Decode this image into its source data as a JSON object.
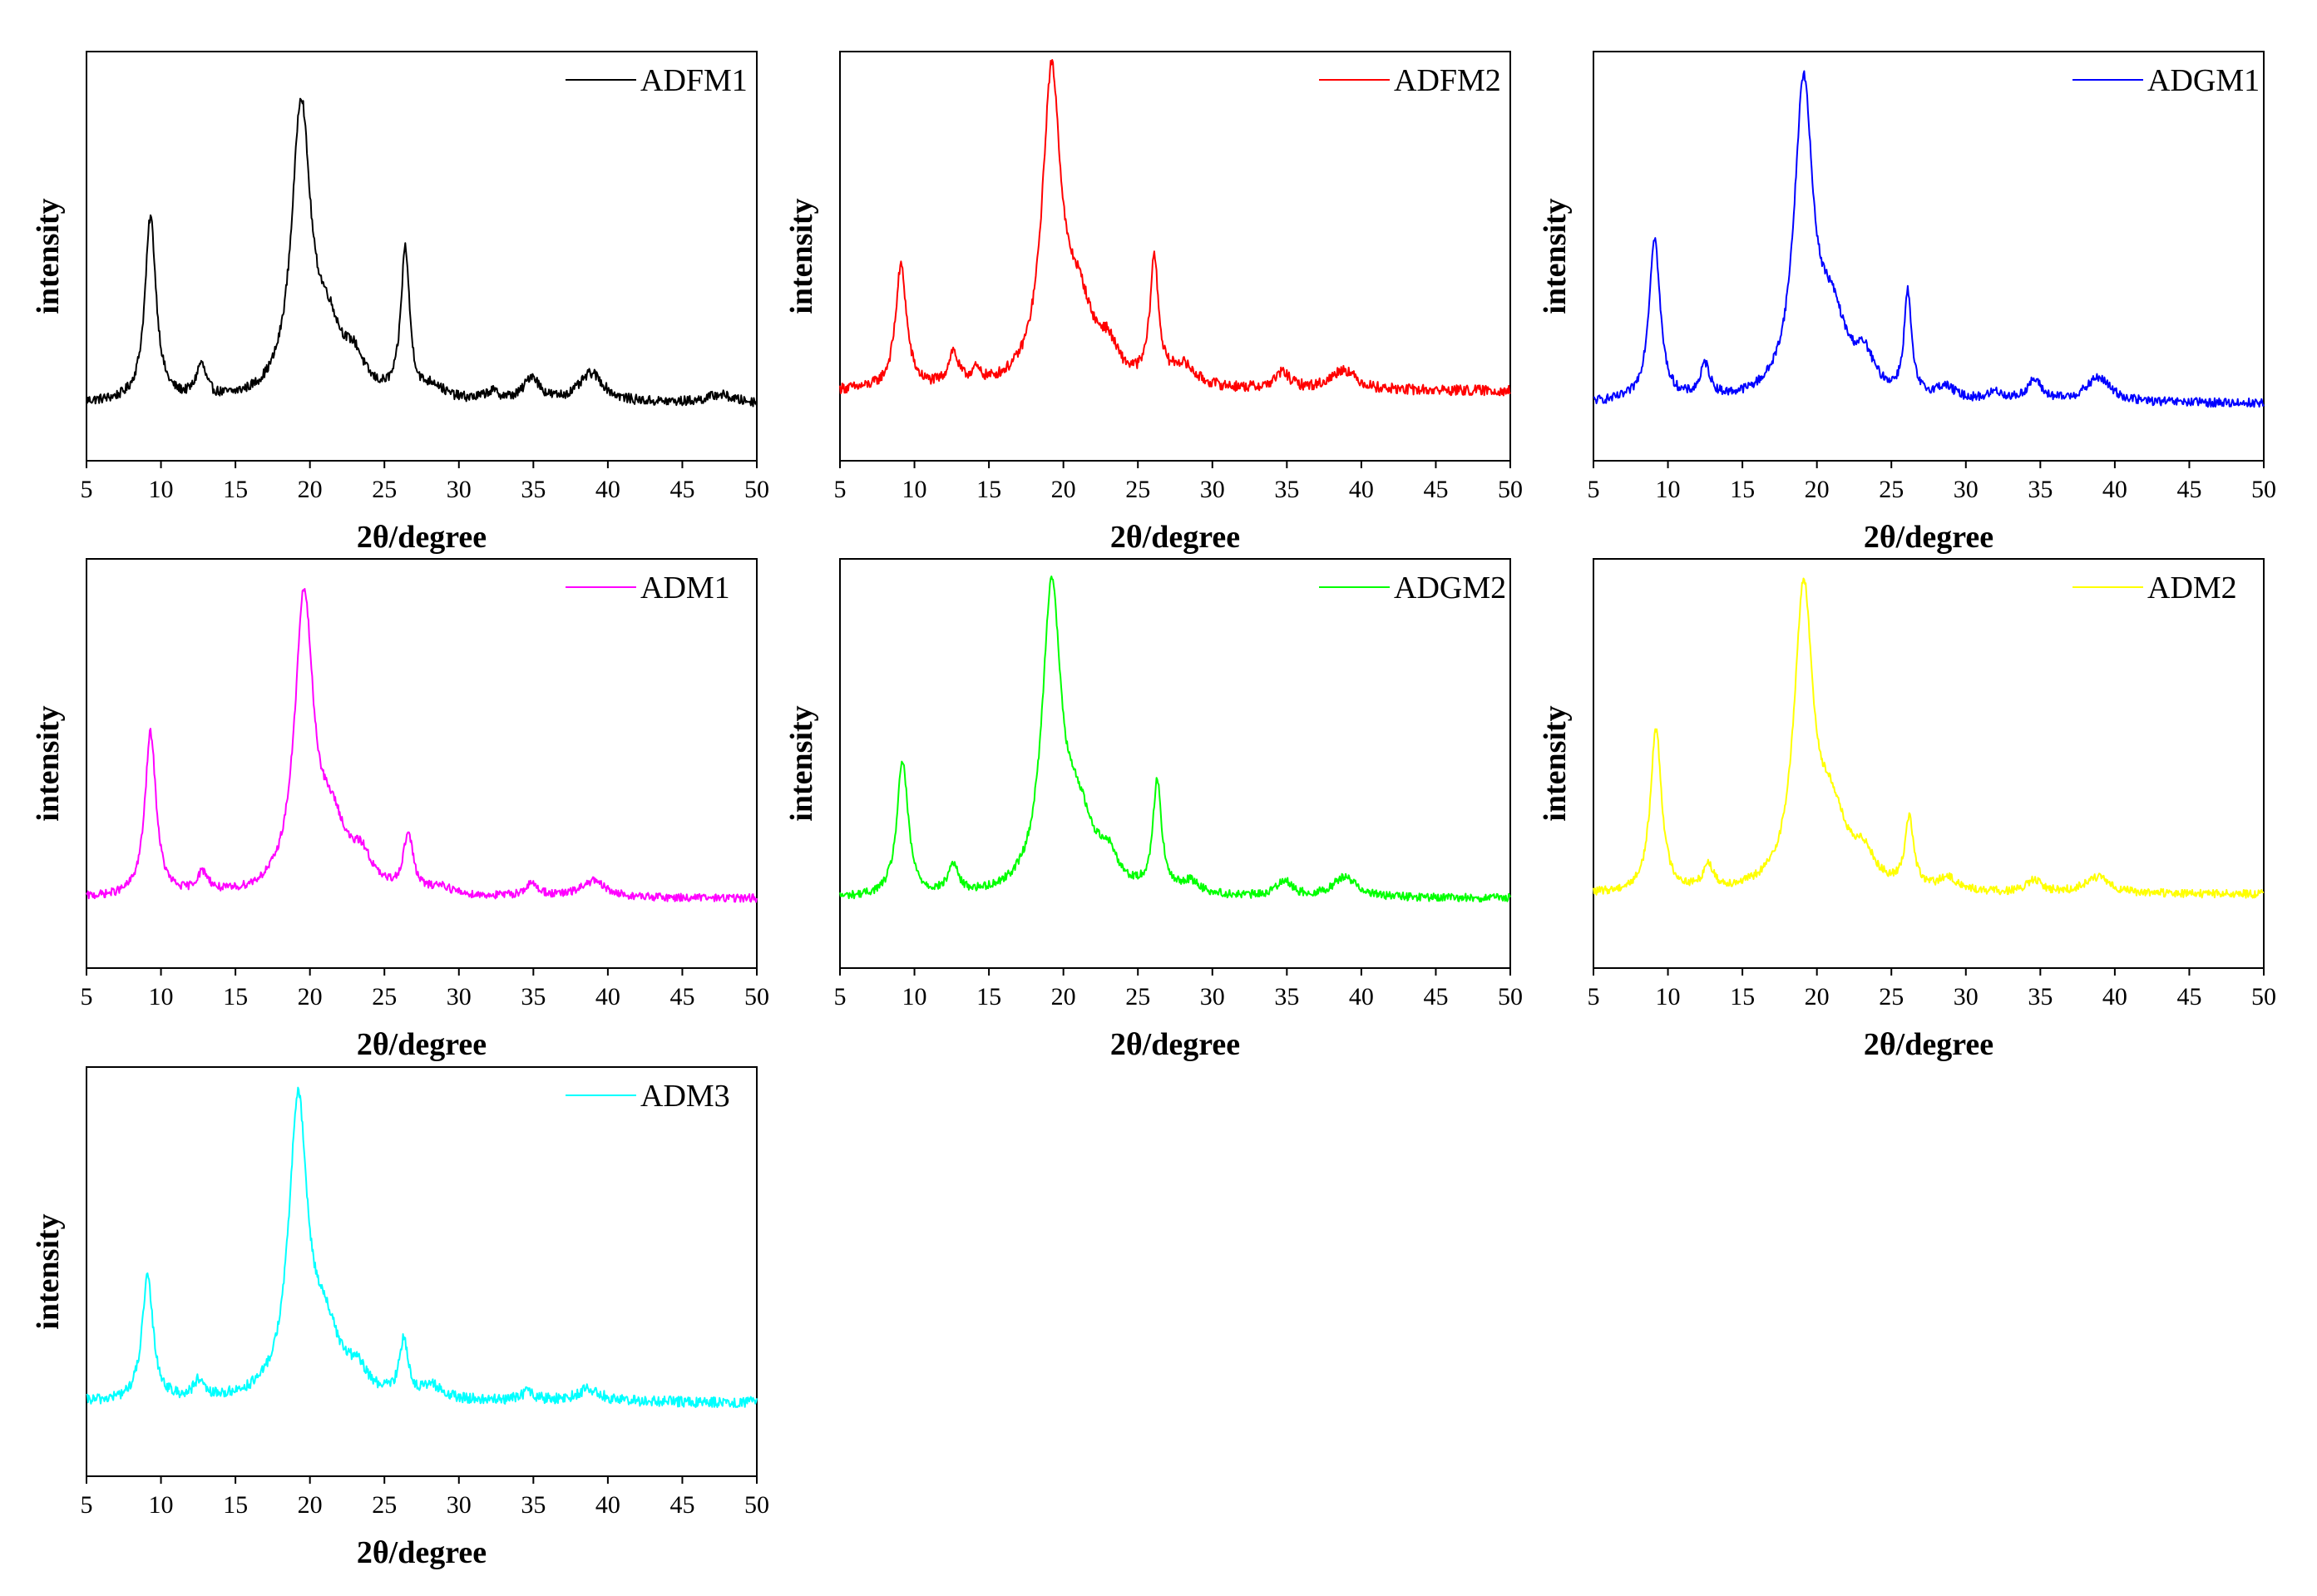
{
  "figure": {
    "background": "#ffffff",
    "axis_color": "#000000"
  },
  "chart_data": [
    {
      "type": "line",
      "series": [
        {
          "name": "ADFM1",
          "color": "#000000"
        }
      ],
      "xlabel": "2θ/degree",
      "ylabel": "intensity",
      "xlim": [
        5,
        50
      ],
      "ylim": [
        0,
        1
      ],
      "xticks": [
        5,
        10,
        15,
        20,
        25,
        30,
        35,
        40,
        45,
        50
      ],
      "y_tick_labels_shown": false,
      "grid": false,
      "legend": "top-right",
      "baseline": 0.14,
      "noise": 0.012,
      "peaks": [
        {
          "x": 9.3,
          "height": 0.45,
          "width": 0.45
        },
        {
          "x": 12.7,
          "height": 0.08,
          "width": 0.4
        },
        {
          "x": 19.4,
          "height": 0.7,
          "width": 0.75
        },
        {
          "x": 21.2,
          "height": 0.15,
          "width": 1.2
        },
        {
          "x": 23.0,
          "height": 0.07,
          "width": 0.8
        },
        {
          "x": 26.4,
          "height": 0.36,
          "width": 0.35
        },
        {
          "x": 28.3,
          "height": 0.03,
          "width": 0.8
        },
        {
          "x": 32.2,
          "height": 0.02,
          "width": 0.6
        },
        {
          "x": 34.9,
          "height": 0.06,
          "width": 0.6
        },
        {
          "x": 38.9,
          "height": 0.07,
          "width": 1.0
        },
        {
          "x": 47.5,
          "height": 0.02,
          "width": 1.0
        }
      ]
    },
    {
      "type": "line",
      "series": [
        {
          "name": "ADFM2",
          "color": "#ff0000"
        }
      ],
      "xlabel": "2θ/degree",
      "ylabel": "intensity",
      "xlim": [
        5,
        50
      ],
      "ylim": [
        0,
        1
      ],
      "xticks": [
        5,
        10,
        15,
        20,
        25,
        30,
        35,
        40,
        45,
        50
      ],
      "y_tick_labels_shown": false,
      "grid": false,
      "legend": "top-right",
      "baseline": 0.17,
      "noise": 0.013,
      "peaks": [
        {
          "x": 9.1,
          "height": 0.3,
          "width": 0.45
        },
        {
          "x": 12.6,
          "height": 0.08,
          "width": 0.4
        },
        {
          "x": 14.1,
          "height": 0.03,
          "width": 0.4
        },
        {
          "x": 19.2,
          "height": 0.74,
          "width": 0.75
        },
        {
          "x": 21.0,
          "height": 0.18,
          "width": 1.2
        },
        {
          "x": 23.0,
          "height": 0.07,
          "width": 0.8
        },
        {
          "x": 26.1,
          "height": 0.3,
          "width": 0.35
        },
        {
          "x": 28.0,
          "height": 0.05,
          "width": 1.0
        },
        {
          "x": 34.7,
          "height": 0.04,
          "width": 0.6
        },
        {
          "x": 38.8,
          "height": 0.05,
          "width": 1.0
        }
      ]
    },
    {
      "type": "line",
      "series": [
        {
          "name": "ADGM1",
          "color": "#0000ff"
        }
      ],
      "xlabel": "2θ/degree",
      "ylabel": "intensity",
      "xlim": [
        5,
        50
      ],
      "ylim": [
        0,
        1
      ],
      "xticks": [
        5,
        10,
        15,
        20,
        25,
        30,
        35,
        40,
        45,
        50
      ],
      "y_tick_labels_shown": false,
      "grid": false,
      "legend": "top-right",
      "baseline": 0.14,
      "noise": 0.011,
      "peaks": [
        {
          "x": 9.1,
          "height": 0.4,
          "width": 0.45
        },
        {
          "x": 12.5,
          "height": 0.08,
          "width": 0.4
        },
        {
          "x": 19.1,
          "height": 0.75,
          "width": 0.75
        },
        {
          "x": 21.0,
          "height": 0.18,
          "width": 1.2
        },
        {
          "x": 23.2,
          "height": 0.08,
          "width": 0.8
        },
        {
          "x": 26.1,
          "height": 0.25,
          "width": 0.3
        },
        {
          "x": 28.6,
          "height": 0.03,
          "width": 0.8
        },
        {
          "x": 32.0,
          "height": 0.02,
          "width": 0.6
        },
        {
          "x": 34.6,
          "height": 0.05,
          "width": 0.6
        },
        {
          "x": 38.9,
          "height": 0.06,
          "width": 1.0
        }
      ]
    },
    {
      "type": "line",
      "series": [
        {
          "name": "ADM1",
          "color": "#ff00ff"
        }
      ],
      "xlabel": "2θ/degree",
      "ylabel": "intensity",
      "xlim": [
        5,
        50
      ],
      "ylim": [
        0,
        1
      ],
      "xticks": [
        5,
        10,
        15,
        20,
        25,
        30,
        35,
        40,
        45,
        50
      ],
      "y_tick_labels_shown": false,
      "grid": false,
      "legend": "top-right",
      "baseline": 0.17,
      "noise": 0.01,
      "peaks": [
        {
          "x": 9.3,
          "height": 0.4,
          "width": 0.45
        },
        {
          "x": 12.8,
          "height": 0.05,
          "width": 0.5
        },
        {
          "x": 19.6,
          "height": 0.71,
          "width": 0.75
        },
        {
          "x": 21.5,
          "height": 0.15,
          "width": 1.2
        },
        {
          "x": 23.5,
          "height": 0.07,
          "width": 0.8
        },
        {
          "x": 26.6,
          "height": 0.14,
          "width": 0.4
        },
        {
          "x": 28.8,
          "height": 0.02,
          "width": 0.8
        },
        {
          "x": 34.9,
          "height": 0.03,
          "width": 0.6
        },
        {
          "x": 39.0,
          "height": 0.04,
          "width": 1.0
        }
      ]
    },
    {
      "type": "line",
      "series": [
        {
          "name": "ADGM2",
          "color": "#00ff00"
        }
      ],
      "xlabel": "2θ/degree",
      "ylabel": "intensity",
      "xlim": [
        5,
        50
      ],
      "ylim": [
        0,
        1
      ],
      "xticks": [
        5,
        10,
        15,
        20,
        25,
        30,
        35,
        40,
        45,
        50
      ],
      "y_tick_labels_shown": false,
      "grid": false,
      "legend": "top-right",
      "baseline": 0.17,
      "noise": 0.01,
      "peaks": [
        {
          "x": 9.2,
          "height": 0.33,
          "width": 0.45
        },
        {
          "x": 12.6,
          "height": 0.07,
          "width": 0.4
        },
        {
          "x": 19.2,
          "height": 0.73,
          "width": 0.75
        },
        {
          "x": 21.0,
          "height": 0.17,
          "width": 1.2
        },
        {
          "x": 23.0,
          "height": 0.07,
          "width": 0.8
        },
        {
          "x": 26.3,
          "height": 0.27,
          "width": 0.35
        },
        {
          "x": 28.5,
          "height": 0.03,
          "width": 0.8
        },
        {
          "x": 34.8,
          "height": 0.04,
          "width": 0.6
        },
        {
          "x": 38.9,
          "height": 0.05,
          "width": 1.0
        }
      ]
    },
    {
      "type": "line",
      "series": [
        {
          "name": "ADM2",
          "color": "#ffff00"
        }
      ],
      "xlabel": "2θ/degree",
      "ylabel": "intensity",
      "xlim": [
        5,
        50
      ],
      "ylim": [
        0,
        1
      ],
      "xticks": [
        5,
        10,
        15,
        20,
        25,
        30,
        35,
        40,
        45,
        50
      ],
      "y_tick_labels_shown": false,
      "grid": false,
      "legend": "top-right",
      "baseline": 0.18,
      "noise": 0.01,
      "peaks": [
        {
          "x": 9.2,
          "height": 0.4,
          "width": 0.45
        },
        {
          "x": 12.7,
          "height": 0.06,
          "width": 0.4
        },
        {
          "x": 19.1,
          "height": 0.72,
          "width": 0.75
        },
        {
          "x": 21.0,
          "height": 0.17,
          "width": 1.2
        },
        {
          "x": 23.2,
          "height": 0.07,
          "width": 0.8
        },
        {
          "x": 26.2,
          "height": 0.17,
          "width": 0.35
        },
        {
          "x": 28.8,
          "height": 0.03,
          "width": 0.8
        },
        {
          "x": 34.6,
          "height": 0.03,
          "width": 0.6
        },
        {
          "x": 38.8,
          "height": 0.04,
          "width": 1.0
        }
      ]
    },
    {
      "type": "line",
      "series": [
        {
          "name": "ADM3",
          "color": "#00ffff"
        }
      ],
      "xlabel": "2θ/degree",
      "ylabel": "intensity",
      "xlim": [
        5,
        50
      ],
      "ylim": [
        0,
        1
      ],
      "xticks": [
        5,
        10,
        15,
        20,
        25,
        30,
        35,
        40,
        45,
        50
      ],
      "y_tick_labels_shown": false,
      "grid": false,
      "legend": "top-right",
      "baseline": 0.18,
      "noise": 0.013,
      "peaks": [
        {
          "x": 9.1,
          "height": 0.3,
          "width": 0.45
        },
        {
          "x": 12.5,
          "height": 0.04,
          "width": 0.4
        },
        {
          "x": 19.2,
          "height": 0.71,
          "width": 0.75
        },
        {
          "x": 21.0,
          "height": 0.15,
          "width": 1.2
        },
        {
          "x": 23.2,
          "height": 0.05,
          "width": 0.8
        },
        {
          "x": 26.3,
          "height": 0.14,
          "width": 0.35
        },
        {
          "x": 28.2,
          "height": 0.03,
          "width": 0.8
        },
        {
          "x": 34.6,
          "height": 0.02,
          "width": 0.6
        },
        {
          "x": 38.7,
          "height": 0.03,
          "width": 1.0
        }
      ]
    }
  ]
}
